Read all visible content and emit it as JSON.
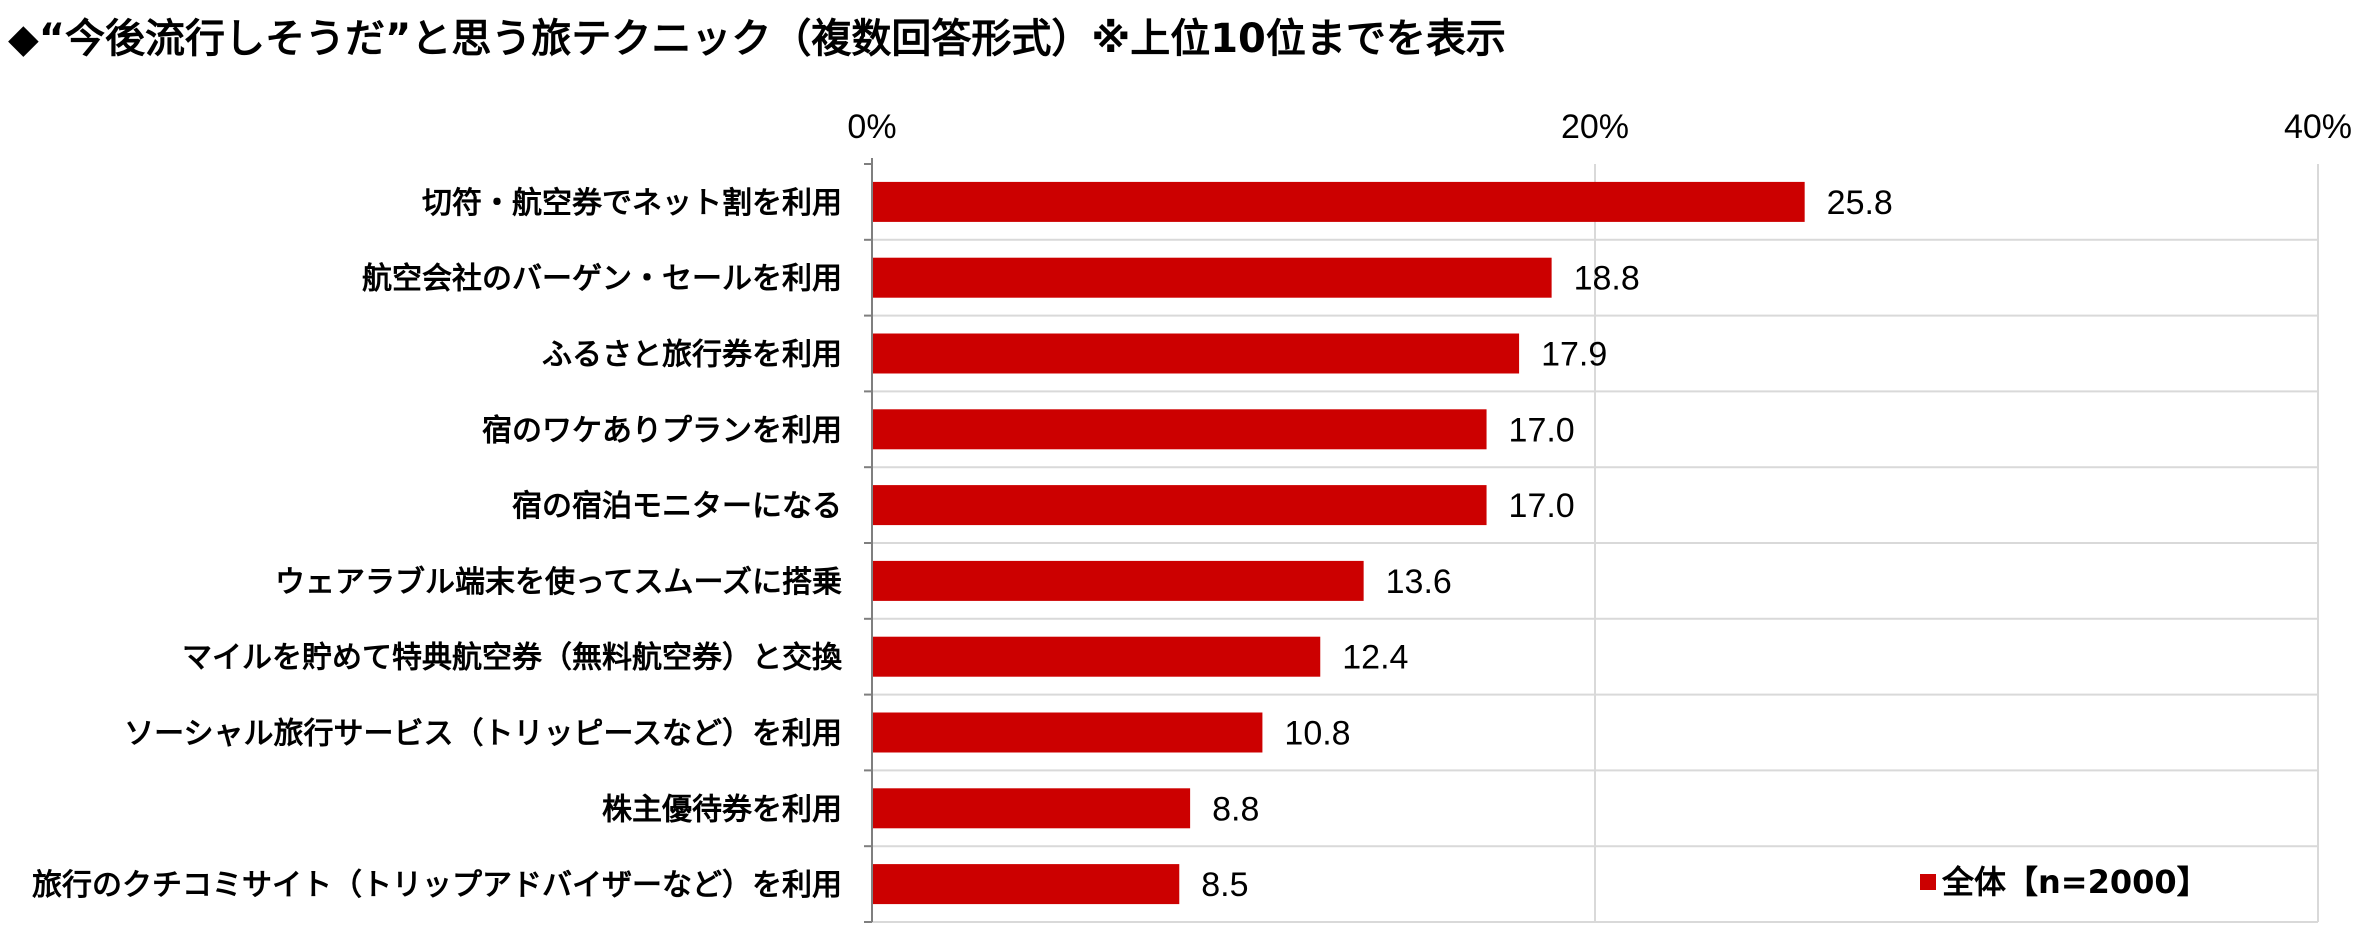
{
  "title": "◆“今後流行しそうだ”と思う旅テクニック（複数回答形式）※上位10位までを表示",
  "colors": {
    "bar": "#CC0000",
    "grid": "#D9D9D9",
    "axis": "#7F7F7F"
  },
  "chart_data": {
    "type": "bar",
    "orientation": "horizontal",
    "categories": [
      "切符・航空券でネット割を利用",
      "航空会社のバーゲン・セールを利用",
      "ふるさと旅行券を利用",
      "宿のワケありプランを利用",
      "宿の宿泊モニターになる",
      "ウェアラブル端末を使ってスムーズに搭乗",
      "マイルを貯めて特典航空券（無料航空券）と交換",
      "ソーシャル旅行サービス（トリッピースなど）を利用",
      "株主優待券を利用",
      "旅行のクチコミサイト（トリップアドバイザーなど）を利用"
    ],
    "series": [
      {
        "name": "全体【n=2000】",
        "values": [
          25.8,
          18.8,
          17.9,
          17.0,
          17.0,
          13.6,
          12.4,
          10.8,
          8.8,
          8.5
        ]
      }
    ],
    "value_labels": [
      "25.8",
      "18.8",
      "17.9",
      "17.0",
      "17.0",
      "13.6",
      "12.4",
      "10.8",
      "8.8",
      "8.5"
    ],
    "xlim": [
      0,
      40
    ],
    "xticks": [
      0,
      20,
      40
    ],
    "xtick_labels": [
      "0%",
      "20%",
      "40%"
    ],
    "grid": true,
    "legend_position": "bottom-right"
  }
}
